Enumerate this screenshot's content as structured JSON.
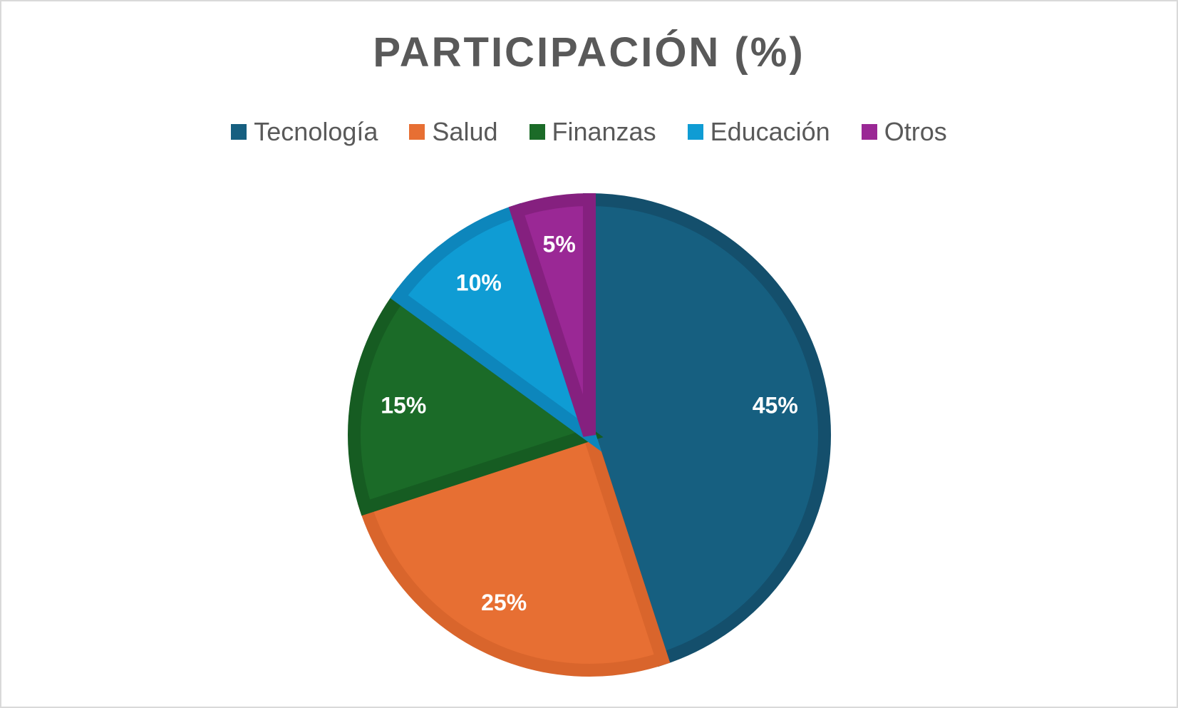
{
  "chart_data": {
    "type": "pie",
    "title": "PARTICIPACIÓN (%)",
    "legend_position": "top",
    "categories": [
      "Tecnología",
      "Salud",
      "Finanzas",
      "Educación",
      "Otros"
    ],
    "values": [
      45,
      25,
      15,
      10,
      5
    ],
    "labels": [
      "45%",
      "25%",
      "15%",
      "10%",
      "5%"
    ],
    "colors": [
      "#165f80",
      "#e76f33",
      "#1b6b28",
      "#0f9cd4",
      "#9a2895"
    ],
    "border_colors": [
      "#144f6c",
      "#d9652c",
      "#165c22",
      "#0d86bc",
      "#85207f"
    ],
    "start_angle_deg": 0,
    "direction": "clockwise"
  }
}
